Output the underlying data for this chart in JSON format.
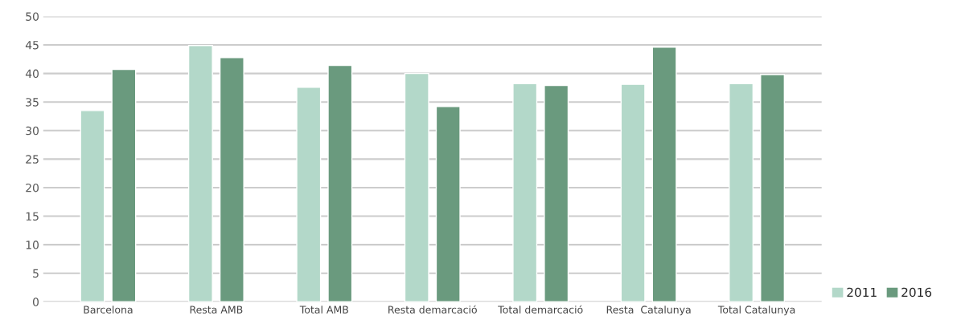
{
  "chart_data": {
    "type": "bar",
    "categories": [
      "Barcelona",
      "Resta AMB",
      "Total AMB",
      "Resta demarcació",
      "Total demarcació",
      "Resta  Catalunya",
      "Total Catalunya"
    ],
    "series": [
      {
        "name": "2011",
        "color": "#b3d8c9",
        "values": [
          33.5,
          44.9,
          37.6,
          40.0,
          38.2,
          38.1,
          38.2
        ]
      },
      {
        "name": "2016",
        "color": "#6a9a7e",
        "values": [
          40.7,
          42.8,
          41.4,
          34.2,
          37.9,
          44.6,
          39.8
        ]
      }
    ],
    "ylim": [
      0,
      50
    ],
    "yticks": [
      0,
      5,
      10,
      15,
      20,
      25,
      30,
      35,
      40,
      45,
      50
    ],
    "grid": "y",
    "legend": "bottom right"
  }
}
